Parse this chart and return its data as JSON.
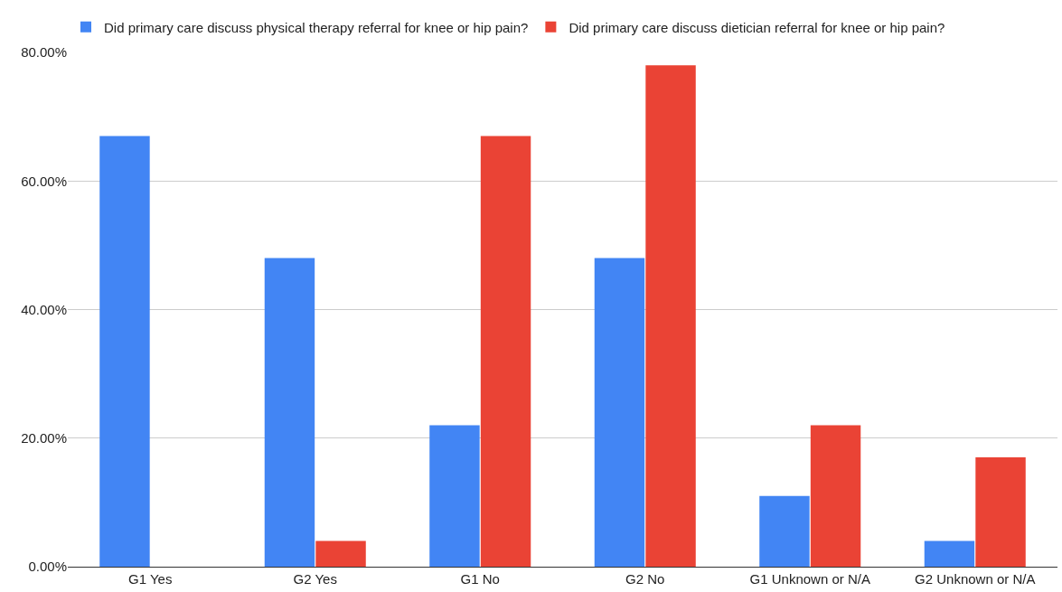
{
  "chart_data": {
    "type": "bar",
    "categories": [
      "G1 Yes",
      "G2 Yes",
      "G1 No",
      "G2 No",
      "G1 Unknown or N/A",
      "G2 Unknown or N/A"
    ],
    "series": [
      {
        "name": "Did primary care discuss physical therapy referral for knee or hip pain?",
        "color": "#4285f4",
        "values": [
          67,
          48,
          22,
          48,
          11,
          4
        ]
      },
      {
        "name": "Did primary care discuss dietician referral for knee or hip pain?",
        "color": "#ea4335",
        "values": [
          0,
          4,
          67,
          78,
          22,
          17
        ]
      }
    ],
    "ylim": [
      0,
      80
    ],
    "yticks": [
      {
        "value": 0,
        "label": "0.00%"
      },
      {
        "value": 20,
        "label": "20.00%"
      },
      {
        "value": 40,
        "label": "40.00%"
      },
      {
        "value": 60,
        "label": "60.00%"
      },
      {
        "value": 80,
        "label": "80.00%"
      }
    ],
    "grid": "y",
    "legend": "top"
  }
}
